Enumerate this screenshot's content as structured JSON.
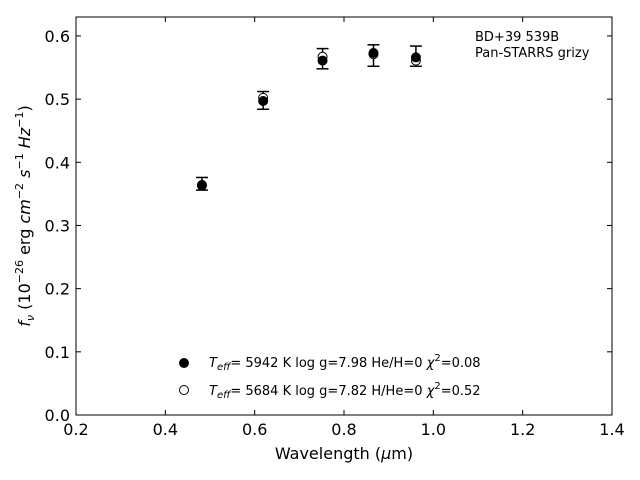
{
  "chart_data": {
    "type": "scatter",
    "xlabel": "Wavelength (μm)",
    "ylabel": "fν (10⁻²⁶ erg cm⁻² s⁻¹ Hz⁻¹)",
    "xlim": [
      0.2,
      1.4
    ],
    "ylim": [
      0.0,
      0.63
    ],
    "x_ticks": [
      "0.2",
      "0.4",
      "0.6",
      "0.8",
      "1.0",
      "1.2",
      "1.4"
    ],
    "y_ticks": [
      "0.0",
      "0.1",
      "0.2",
      "0.3",
      "0.4",
      "0.5",
      "0.6"
    ],
    "grid": false,
    "annotation": [
      "BD+39 539B",
      "Pan-STARRS grizy"
    ],
    "legend_position": "bottom-center",
    "observed": {
      "x": [
        0.482,
        0.619,
        0.752,
        0.866,
        0.961
      ],
      "y": [
        0.366,
        0.498,
        0.564,
        0.569,
        0.568
      ],
      "yerr": [
        0.01,
        0.014,
        0.016,
        0.017,
        0.016
      ]
    },
    "series": [
      {
        "name": "Teff= 5942 K log g=7.98 He/H=0 χ²=0.08",
        "marker": "filled-circle",
        "x": [
          0.482,
          0.619,
          0.752,
          0.866,
          0.961
        ],
        "y": [
          0.364,
          0.497,
          0.561,
          0.573,
          0.566
        ]
      },
      {
        "name": "Teff= 5684 K log g=7.82 H/He=0 χ²=0.52",
        "marker": "open-circle",
        "x": [
          0.482,
          0.619,
          0.752,
          0.866,
          0.961
        ],
        "y": [
          0.363,
          0.502,
          0.567,
          0.571,
          0.561
        ]
      }
    ],
    "legend": {
      "filled": {
        "teff_label": "eff",
        "rest": "=  5942 K  log g=7.98  He/H=0  ",
        "chi_value": "=0.08"
      },
      "open": {
        "teff_label": "eff",
        "rest": "=  5684 K  log g=7.82  H/He=0  ",
        "chi_value": "=0.52"
      }
    }
  }
}
